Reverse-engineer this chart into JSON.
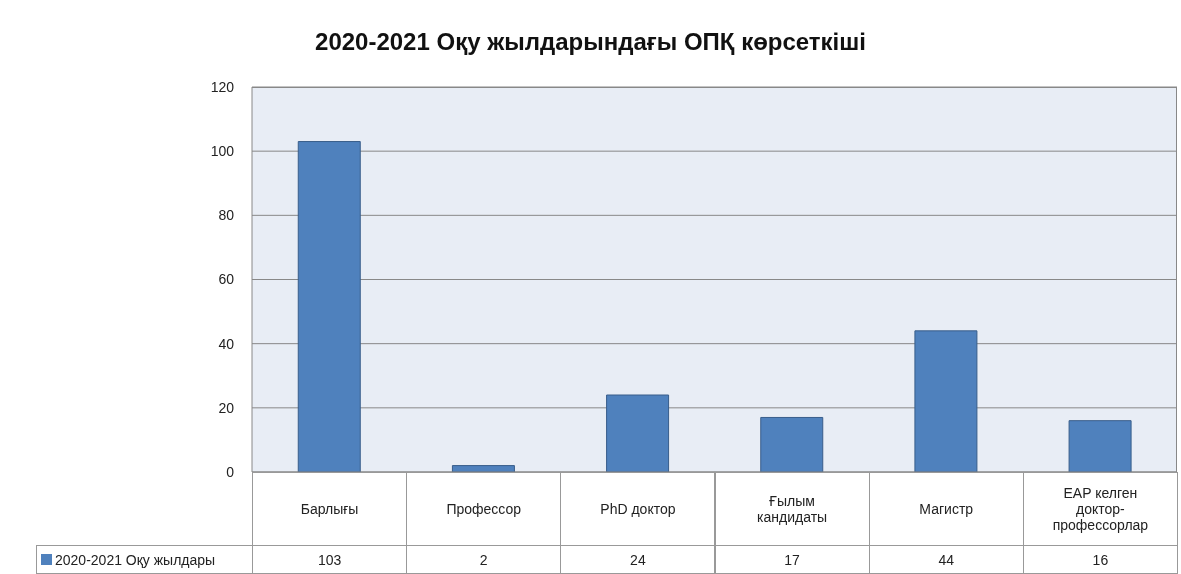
{
  "chart_data": {
    "type": "bar",
    "title": "2020-2021 Оқу жылдарындағы ОПҚ көрсеткіші",
    "categories": [
      "Барлығы",
      "Профессор",
      "PhD доктор",
      "Ғылым кандидаты",
      "Магистр",
      "EAP келген доктор-профессорлар"
    ],
    "series": [
      {
        "name": "2020-2021 Оқу жылдары",
        "color": "#4f81bd",
        "values": [
          103,
          2,
          24,
          17,
          44,
          16
        ]
      }
    ],
    "ylim": [
      0,
      120
    ],
    "yticks": [
      0,
      20,
      40,
      60,
      80,
      100,
      120
    ],
    "grid": "y",
    "legend": "bottom left",
    "data_labels": true
  }
}
